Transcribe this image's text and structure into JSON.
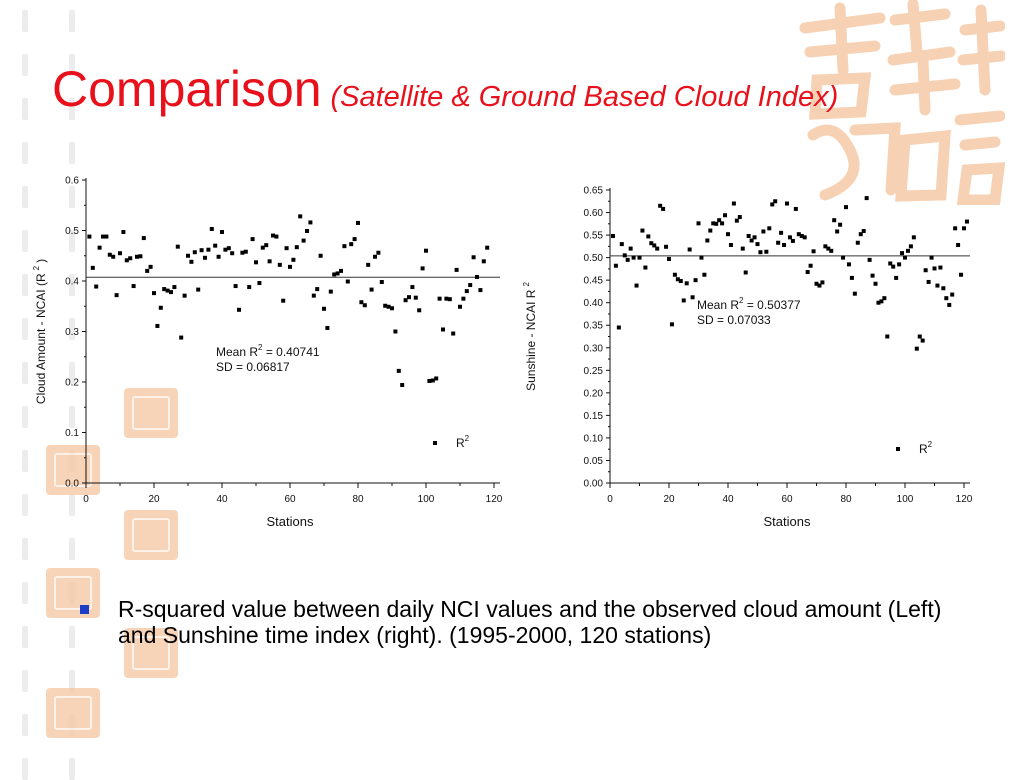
{
  "slide": {
    "title": "Comparison",
    "subtitle": "(Satellite & Ground Based Cloud Index)",
    "bullet": "R-squared value between daily NCI values and the observed cloud amount (Left) and Sunshine time index (right). (1995-2000, 120 stations)",
    "colors": {
      "title": "#e8101a",
      "bullet": "#1b3dc8",
      "decoration": "#f6c9a6"
    }
  },
  "chart_data": [
    {
      "type": "scatter",
      "xlabel": "Stations",
      "ylabel": "Cloud Amount - NCAI (R",
      "ylabel_sup": "2",
      "ylabel_end": ")",
      "xlim": [
        0,
        120
      ],
      "ylim": [
        0,
        0.6
      ],
      "x_ticks": [
        "0",
        "20",
        "40",
        "60",
        "80",
        "100",
        "120"
      ],
      "y_ticks": [
        "0.0",
        "0.1",
        "0.2",
        "0.3",
        "0.4",
        "0.5",
        "0.6"
      ],
      "mean_line": 0.40741,
      "annotation": {
        "mean_prefix": "Mean R",
        "sup": "2",
        "mean_suffix": " = 0.40741",
        "sd": "SD = 0.06817"
      },
      "legend": {
        "label": "R",
        "sup": "2",
        "position": "bottom-right"
      },
      "series": [
        {
          "name": "R2",
          "values": [
            0.488,
            0.426,
            0.389,
            0.466,
            0.488,
            0.488,
            0.452,
            0.448,
            0.372,
            0.455,
            0.497,
            0.441,
            0.445,
            0.39,
            0.448,
            0.449,
            0.485,
            0.42,
            0.428,
            0.376,
            0.311,
            0.347,
            0.384,
            0.381,
            0.378,
            0.388,
            0.468,
            0.288,
            0.371,
            0.45,
            0.438,
            0.457,
            0.383,
            0.461,
            0.446,
            0.462,
            0.503,
            0.47,
            0.448,
            0.497,
            0.462,
            0.465,
            0.455,
            0.39,
            0.343,
            0.456,
            0.458,
            0.388,
            0.483,
            0.437,
            0.396,
            0.466,
            0.471,
            0.439,
            0.49,
            0.488,
            0.432,
            0.361,
            0.465,
            0.428,
            0.442,
            0.467,
            0.528,
            0.48,
            0.499,
            0.516,
            0.371,
            0.384,
            0.45,
            0.345,
            0.307,
            0.379,
            0.413,
            0.415,
            0.42,
            0.469,
            0.399,
            0.473,
            0.483,
            0.515,
            0.358,
            0.352,
            0.432,
            0.383,
            0.448,
            0.456,
            0.398,
            0.351,
            0.349,
            0.346,
            0.3,
            0.222,
            0.194,
            0.362,
            0.368,
            0.388,
            0.367,
            0.342,
            0.425,
            0.46,
            0.202,
            0.203,
            0.207,
            0.365,
            0.304,
            0.365,
            0.364,
            0.296,
            0.422,
            0.349,
            0.365,
            0.38,
            0.392,
            0.447,
            0.408,
            0.382,
            0.439,
            0.466
          ]
        }
      ]
    },
    {
      "type": "scatter",
      "xlabel": "Stations",
      "ylabel": "Sunshine - NCAI R",
      "ylabel_sup": "2",
      "xlim": [
        0,
        120
      ],
      "ylim": [
        0,
        0.65
      ],
      "x_ticks": [
        "0",
        "20",
        "40",
        "60",
        "80",
        "100",
        "120"
      ],
      "y_ticks": [
        "0.00",
        "0.05",
        "0.10",
        "0.15",
        "0.20",
        "0.25",
        "0.30",
        "0.35",
        "0.40",
        "0.45",
        "0.50",
        "0.55",
        "0.60",
        "0.65"
      ],
      "mean_line": 0.50377,
      "annotation": {
        "mean_prefix": "Mean R",
        "sup": "2",
        "mean_suffix": " = 0.50377",
        "sd": "SD = 0.07033"
      },
      "legend": {
        "label": "R",
        "sup": "2",
        "position": "bottom-right"
      },
      "series": [
        {
          "name": "R2",
          "values": [
            0.548,
            0.482,
            0.345,
            0.53,
            0.505,
            0.495,
            0.52,
            0.5,
            0.438,
            0.5,
            0.56,
            0.478,
            0.547,
            0.532,
            0.527,
            0.52,
            0.615,
            0.608,
            0.524,
            0.497,
            0.352,
            0.462,
            0.452,
            0.448,
            0.405,
            0.443,
            0.518,
            0.412,
            0.45,
            0.576,
            0.5,
            0.462,
            0.538,
            0.56,
            0.576,
            0.575,
            0.583,
            0.576,
            0.594,
            0.552,
            0.528,
            0.62,
            0.582,
            0.59,
            0.52,
            0.467,
            0.548,
            0.538,
            0.545,
            0.53,
            0.512,
            0.558,
            0.513,
            0.565,
            0.618,
            0.625,
            0.533,
            0.555,
            0.528,
            0.62,
            0.545,
            0.537,
            0.608,
            0.552,
            0.548,
            0.545,
            0.468,
            0.482,
            0.514,
            0.442,
            0.438,
            0.445,
            0.525,
            0.52,
            0.515,
            0.583,
            0.558,
            0.573,
            0.5,
            0.612,
            0.485,
            0.455,
            0.42,
            0.533,
            0.552,
            0.559,
            0.632,
            0.495,
            0.46,
            0.442,
            0.4,
            0.403,
            0.41,
            0.325,
            0.487,
            0.48,
            0.455,
            0.485,
            0.51,
            0.5,
            0.515,
            0.525,
            0.545,
            0.298,
            0.325,
            0.316,
            0.472,
            0.446,
            0.5,
            0.476,
            0.438,
            0.478,
            0.432,
            0.41,
            0.395,
            0.418,
            0.565,
            0.528,
            0.462,
            0.565,
            0.58
          ]
        }
      ]
    }
  ]
}
